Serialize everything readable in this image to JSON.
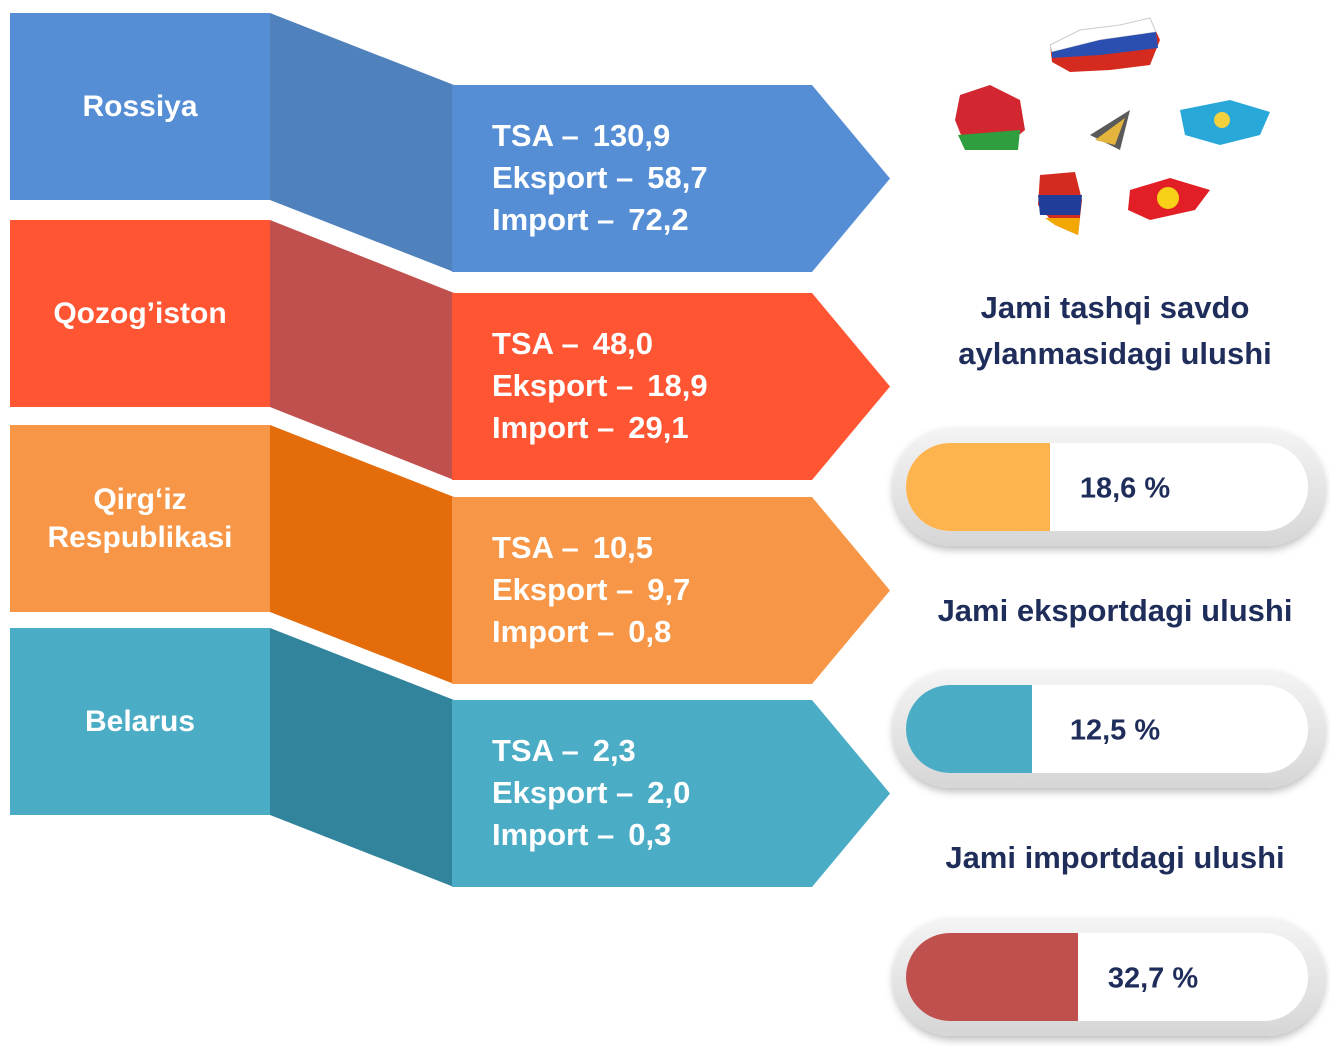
{
  "countries": [
    {
      "name": [
        "Rossiya"
      ],
      "stats": [
        {
          "label": "TSA –",
          "value": "130,9"
        },
        {
          "label": "Eksport –",
          "value": "58,7"
        },
        {
          "label": "Import –",
          "value": "72,2"
        }
      ]
    },
    {
      "name": [
        "Qozog’iston"
      ],
      "stats": [
        {
          "label": "TSA –",
          "value": "48,0"
        },
        {
          "label": "Eksport –",
          "value": "18,9"
        },
        {
          "label": "Import –",
          "value": "29,1"
        }
      ]
    },
    {
      "name": [
        "Qirg‘iz",
        "Respublikasi"
      ],
      "stats": [
        {
          "label": "TSA –",
          "value": "10,5"
        },
        {
          "label": "Eksport –",
          "value": "9,7"
        },
        {
          "label": "Import –",
          "value": "0,8"
        }
      ]
    },
    {
      "name": [
        "Belarus"
      ],
      "stats": [
        {
          "label": "TSA –",
          "value": "2,3"
        },
        {
          "label": "Eksport –",
          "value": "2,0"
        },
        {
          "label": "Import –",
          "value": "0,3"
        }
      ]
    }
  ],
  "shares": [
    {
      "title": [
        "Jami tashqi savdo",
        "aylanmasidagi ulushi"
      ],
      "value": "18,6 %"
    },
    {
      "title": [
        "Jami eksportdagi ulushi"
      ],
      "value": "12,5 %"
    },
    {
      "title": [
        "Jami importdagi ulushi"
      ],
      "value": "32,7 %"
    }
  ]
}
